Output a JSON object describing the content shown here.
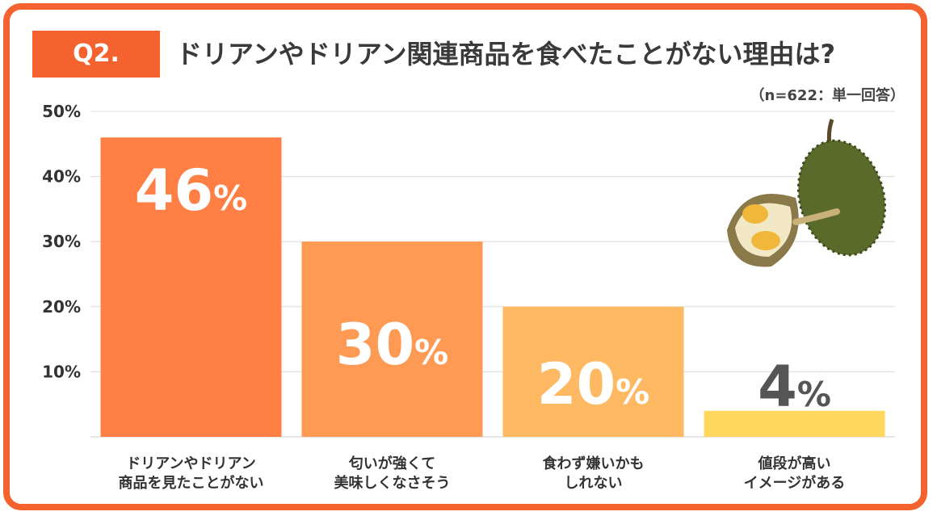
{
  "question_badge": "Q2.",
  "chart_data": {
    "type": "bar",
    "title": "ドリアンやドリアン関連商品を食べたことがない理由は?",
    "note": "（n=622：単一回答）",
    "categories": [
      [
        "ドリアンやドリアン",
        "商品を見たことがない"
      ],
      [
        "匂いが強くて",
        "美味しくなさそう"
      ],
      [
        "食わず嫌いかも",
        "しれない"
      ],
      [
        "値段が高い",
        "イメージがある"
      ]
    ],
    "values": [
      46,
      30,
      20,
      4
    ],
    "value_labels": [
      "46",
      "30",
      "20",
      "4"
    ],
    "value_unit": "%",
    "y_ticks": [
      "10%",
      "20%",
      "30%",
      "40%",
      "50%"
    ],
    "ylim": [
      0,
      50
    ],
    "grid": true,
    "colors": [
      "#ff7f45",
      "#ff9a55",
      "#ffb962",
      "#ffd75c"
    ],
    "label_colors": [
      "#ffffff",
      "#ffffff",
      "#ffffff",
      "#555555"
    ]
  },
  "image": {
    "icon": "durian-icon"
  }
}
